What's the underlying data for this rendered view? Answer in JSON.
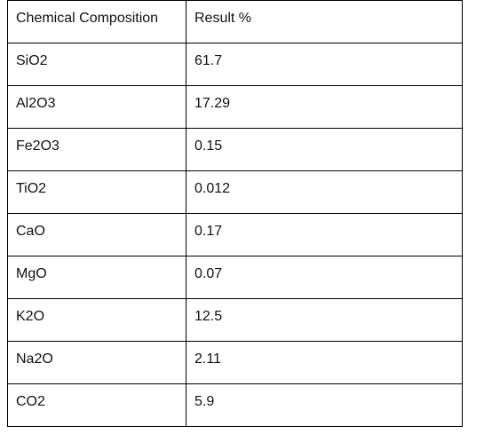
{
  "table": {
    "headers": [
      "Chemical Composition",
      "Result %"
    ],
    "rows": [
      {
        "composition": "SiO2",
        "result": "61.7"
      },
      {
        "composition": "Al2O3",
        "result": "17.29"
      },
      {
        "composition": "Fe2O3",
        "result": "0.15"
      },
      {
        "composition": "TiO2",
        "result": "0.012"
      },
      {
        "composition": "CaO",
        "result": "0.17"
      },
      {
        "composition": "MgO",
        "result": "0.07"
      },
      {
        "composition": "K2O",
        "result": "12.5"
      },
      {
        "composition": "Na2O",
        "result": "2.11"
      },
      {
        "composition": "CO2",
        "result": "5.9"
      }
    ]
  }
}
